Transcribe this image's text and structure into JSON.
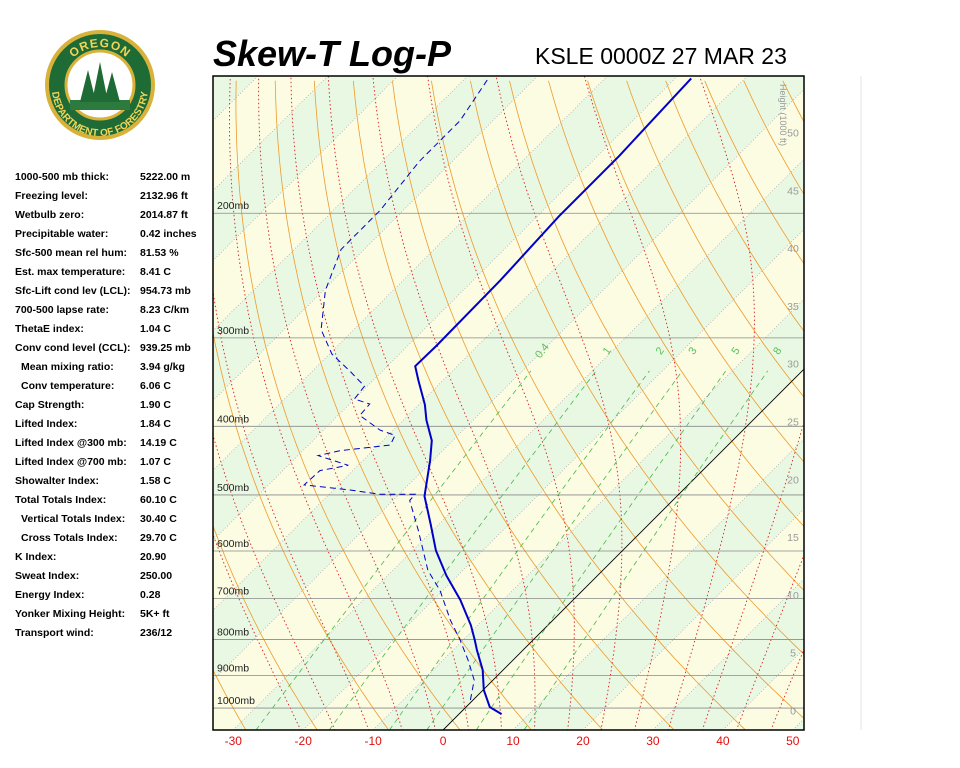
{
  "logo": {
    "top": "OREGON",
    "bottom": "DEPARTMENT OF FORESTRY"
  },
  "indices": {
    "rows": [
      [
        "1000-500 mb thick:",
        "5222.00 m"
      ],
      [
        "Freezing level:",
        "2132.96 ft"
      ],
      [
        "Wetbulb zero:",
        "2014.87 ft"
      ],
      [
        "Precipitable water:",
        "0.42 inches"
      ],
      [
        "Sfc-500 mean rel hum:",
        "81.53 %"
      ],
      [
        "Est. max temperature:",
        "8.41 C"
      ],
      [
        "Sfc-Lift cond lev (LCL):",
        "954.73 mb"
      ],
      [
        "700-500 lapse rate:",
        "8.23 C/km"
      ],
      [
        "ThetaE index:",
        "1.04 C"
      ],
      [
        "Conv cond level (CCL):",
        "939.25 mb"
      ],
      [
        "Mean mixing ratio:",
        "3.94 g/kg"
      ],
      [
        "Conv temperature:",
        "6.06 C"
      ],
      [
        "Cap Strength:",
        "1.90 C"
      ],
      [
        "Lifted Index:",
        "1.84 C"
      ],
      [
        "Lifted Index @300 mb:",
        "14.19 C"
      ],
      [
        "Lifted Index @700 mb:",
        "1.07 C"
      ],
      [
        "Showalter Index:",
        "1.58 C"
      ],
      [
        "Total Totals Index:",
        "60.10 C"
      ],
      [
        "Vertical Totals Index:",
        "30.40 C"
      ],
      [
        "Cross Totals Index:",
        "29.70 C"
      ],
      [
        "K Index:",
        "20.90"
      ],
      [
        "Sweat Index:",
        "250.00"
      ],
      [
        "Energy Index:",
        "0.28"
      ],
      [
        "Yonker Mixing Height:",
        "5K+ ft"
      ],
      [
        "Transport wind:",
        "236/12"
      ]
    ]
  },
  "chart_data": {
    "type": "skewt",
    "title": "Skew-T Log-P",
    "subtitle": "KSLE 0000Z 27 MAR 23",
    "xlim": [
      -32.9,
      51.6
    ],
    "xticks": [
      -30,
      -20,
      -10,
      0,
      10,
      20,
      30,
      40,
      50
    ],
    "ylim": [
      1074,
      128
    ],
    "log_y": true,
    "yticks": [
      {
        "value": 1000,
        "label": "1000mb"
      },
      {
        "value": 900,
        "label": "900mb"
      },
      {
        "value": 800,
        "label": "800mb"
      },
      {
        "value": 700,
        "label": "700mb"
      },
      {
        "value": 600,
        "label": "600mb"
      },
      {
        "value": 500,
        "label": "500mb"
      },
      {
        "value": 400,
        "label": "400mb"
      },
      {
        "value": 300,
        "label": "300mb"
      },
      {
        "value": 200,
        "label": "200mb"
      }
    ],
    "y2label": "Height (1000 ft)",
    "y2lim": [
      -1.7,
      54.9
    ],
    "y2ticks": [
      0,
      5,
      10,
      15,
      20,
      25,
      30,
      35,
      40,
      45,
      50
    ],
    "mixing_ratios": [
      0.4,
      1,
      2,
      3,
      5,
      8
    ],
    "series": [
      {
        "name": "Temperature",
        "color": "#0000c8",
        "pressure": [
          1020,
          997,
          943,
          884,
          828,
          802,
          764,
          704,
          650,
          599,
          551,
          502,
          447,
          419,
          392,
          373,
          344,
          329,
          308,
          249,
          202,
          166,
          129
        ],
        "values": [
          6.1,
          3.4,
          0.1,
          -2.9,
          -6.6,
          -8.3,
          -11.0,
          -16.1,
          -21.6,
          -26.7,
          -31.1,
          -36.1,
          -40.4,
          -43.0,
          -46.7,
          -49.1,
          -53.6,
          -56.0,
          -55.9,
          -56.1,
          -56.9,
          -56.9,
          -57.7
        ]
      },
      {
        "name": "Dewpoint",
        "color": "#0000c8",
        "pressure": [
          974,
          913,
          856,
          802,
          751,
          682,
          639,
          561,
          509,
          499,
          499,
          492,
          484,
          462,
          454,
          440,
          433,
          425,
          412,
          405,
          386,
          372,
          366,
          351,
          334,
          316,
          292,
          257,
          225,
          198,
          169,
          148,
          129
        ],
        "values": [
          -0.4,
          -2.7,
          -6.4,
          -10.4,
          -14.7,
          -20.4,
          -25.0,
          -32.1,
          -37.6,
          -37.7,
          -42.7,
          -47.6,
          -54.9,
          -54.7,
          -51.4,
          -57.1,
          -54.7,
          -48.3,
          -49.0,
          -51.9,
          -56.9,
          -57.1,
          -60.0,
          -60.4,
          -64.7,
          -69.7,
          -74.7,
          -79.7,
          -83.3,
          -83.3,
          -84.7,
          -84.7,
          -86.7
        ]
      }
    ]
  }
}
